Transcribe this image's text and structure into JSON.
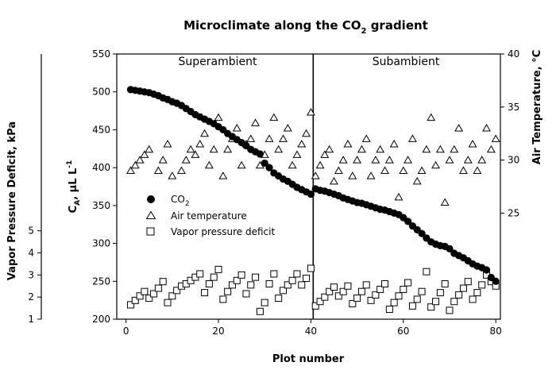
{
  "chart_data": {
    "type": "scatter",
    "title_main": "Microclimate along the CO",
    "title_sub": "2",
    "title_rest": " gradient",
    "xlabel": "Plot number",
    "x_range": [
      -2,
      81
    ],
    "x_ticks": [
      0,
      20,
      40,
      60,
      80
    ],
    "x_tick_labels": [
      "0",
      "20",
      "40",
      "60",
      "80"
    ],
    "left_axis": {
      "label_main": "C",
      "label_sub": "A",
      "label_units": ", µL L",
      "label_sup": "-1",
      "range": [
        200,
        550
      ],
      "ticks": [
        200,
        250,
        300,
        350,
        400,
        450,
        500,
        550
      ],
      "tick_labels": [
        "200",
        "250",
        "300",
        "350",
        "400",
        "450",
        "500",
        "550"
      ]
    },
    "right_axis": {
      "label": "Air Temperature, °C",
      "range": [
        15,
        40
      ],
      "ticks": [
        25,
        30,
        35,
        40
      ],
      "tick_labels": [
        "25",
        "30",
        "35",
        "40"
      ]
    },
    "vpd_axis": {
      "label": "Vapor Pressure Deficit, kPa",
      "range": [
        1,
        13
      ],
      "ticks": [
        1,
        2,
        3,
        4,
        5
      ],
      "tick_labels": [
        "1",
        "2",
        "3",
        "4",
        "5"
      ]
    },
    "divider_x": 40.5,
    "panels": [
      "Superambient",
      "Subambient"
    ],
    "legend": {
      "co2_main": "CO",
      "co2_sub": "2",
      "air_temperature": "Air temperature",
      "vpd": "Vapor pressure deficit"
    },
    "series": [
      {
        "name": "CO2",
        "axis": "left",
        "marker": "filled-circle",
        "x": [
          1,
          2,
          3,
          4,
          5,
          6,
          7,
          8,
          9,
          10,
          11,
          12,
          13,
          14,
          15,
          16,
          17,
          18,
          19,
          20,
          21,
          22,
          23,
          24,
          25,
          26,
          27,
          28,
          29,
          30,
          31,
          32,
          33,
          34,
          35,
          36,
          37,
          38,
          39,
          40,
          41,
          42,
          43,
          44,
          45,
          46,
          47,
          48,
          49,
          50,
          51,
          52,
          53,
          54,
          55,
          56,
          57,
          58,
          59,
          60,
          61,
          62,
          63,
          64,
          65,
          66,
          67,
          68,
          69,
          70,
          71,
          72,
          73,
          74,
          75,
          76,
          77,
          78,
          79,
          80
        ],
        "y": [
          503,
          502,
          501,
          500,
          499,
          497,
          495,
          492,
          490,
          487,
          485,
          482,
          478,
          474,
          470,
          467,
          464,
          461,
          458,
          454,
          450,
          445,
          441,
          437,
          433,
          429,
          424,
          421,
          418,
          406,
          400,
          393,
          389,
          385,
          382,
          378,
          374,
          371,
          368,
          365,
          372,
          370,
          369,
          367,
          365,
          363,
          360,
          358,
          356,
          354,
          353,
          351,
          349,
          347,
          345,
          344,
          342,
          340,
          338,
          334,
          329,
          323,
          318,
          313,
          307,
          302,
          299,
          297,
          296,
          293,
          287,
          284,
          281,
          277,
          273,
          270,
          268,
          265,
          255,
          250
        ]
      },
      {
        "name": "Air temperature",
        "axis": "right",
        "marker": "open-triangle",
        "x": [
          1,
          2,
          3,
          4,
          5,
          7,
          8,
          9,
          10,
          12,
          13,
          14,
          15,
          16,
          17,
          18,
          19,
          20,
          21,
          22,
          23,
          24,
          25,
          26,
          27,
          28,
          29,
          30,
          31,
          32,
          33,
          34,
          35,
          36,
          37,
          38,
          39,
          40,
          41,
          42,
          43,
          44,
          45,
          46,
          47,
          48,
          49,
          50,
          51,
          52,
          53,
          54,
          55,
          56,
          57,
          58,
          59,
          60,
          61,
          62,
          63,
          64,
          65,
          66,
          67,
          68,
          69,
          70,
          71,
          72,
          73,
          74,
          75,
          76,
          77,
          78,
          79,
          80
        ],
        "y": [
          29,
          29.5,
          30,
          30.5,
          31,
          29,
          30,
          31.5,
          28.5,
          29,
          30,
          31,
          30.5,
          31.5,
          32.5,
          29.5,
          31,
          34,
          28.5,
          31,
          32,
          33,
          29.5,
          31.5,
          32,
          33.5,
          29.5,
          30.5,
          32,
          34,
          31,
          32,
          33,
          29.5,
          30.5,
          31.5,
          32.5,
          34.5,
          28.5,
          29.5,
          30.5,
          31,
          28,
          29,
          30,
          31.5,
          28.5,
          30,
          31,
          32,
          28.5,
          30,
          31,
          29,
          30,
          31.5,
          26.5,
          29,
          30,
          32,
          28,
          29,
          31,
          34,
          29.5,
          31,
          26,
          30,
          31,
          33,
          29,
          30,
          31.5,
          29,
          30,
          33,
          31,
          32
        ]
      },
      {
        "name": "Vapor pressure deficit",
        "axis": "vpd",
        "marker": "open-square",
        "x": [
          1,
          2,
          3,
          4,
          5,
          6,
          7,
          8,
          9,
          10,
          11,
          12,
          13,
          14,
          15,
          16,
          17,
          18,
          19,
          20,
          21,
          22,
          23,
          24,
          25,
          26,
          27,
          28,
          29,
          30,
          31,
          32,
          33,
          34,
          35,
          36,
          37,
          38,
          39,
          40,
          41,
          42,
          43,
          44,
          45,
          46,
          47,
          48,
          49,
          50,
          51,
          52,
          53,
          54,
          55,
          56,
          57,
          58,
          59,
          60,
          61,
          62,
          63,
          64,
          65,
          66,
          67,
          68,
          69,
          70,
          71,
          72,
          73,
          74,
          75,
          76,
          77,
          78,
          79,
          80
        ],
        "y": [
          1.65,
          1.85,
          2.05,
          2.25,
          1.95,
          2.15,
          2.4,
          2.7,
          1.75,
          2.05,
          2.3,
          2.5,
          2.6,
          2.75,
          2.9,
          3.05,
          2.2,
          2.6,
          2.9,
          3.25,
          1.9,
          2.25,
          2.55,
          2.75,
          3,
          2.15,
          2.55,
          2.9,
          1.35,
          1.75,
          2.6,
          3.05,
          1.95,
          2.3,
          2.55,
          2.75,
          3.05,
          2.55,
          2.85,
          3.3,
          1.6,
          1.8,
          2,
          2.25,
          2.45,
          2.05,
          2.25,
          2.5,
          1.7,
          1.95,
          2.25,
          2.55,
          1.85,
          2.1,
          2.35,
          2.6,
          1.45,
          1.75,
          2.05,
          2.35,
          2.65,
          1.6,
          1.9,
          2.25,
          3.15,
          1.55,
          1.8,
          2.2,
          2.6,
          1.4,
          1.8,
          2.1,
          2.4,
          2.7,
          1.9,
          2.2,
          2.55,
          3,
          2.7,
          2.5
        ]
      }
    ]
  }
}
